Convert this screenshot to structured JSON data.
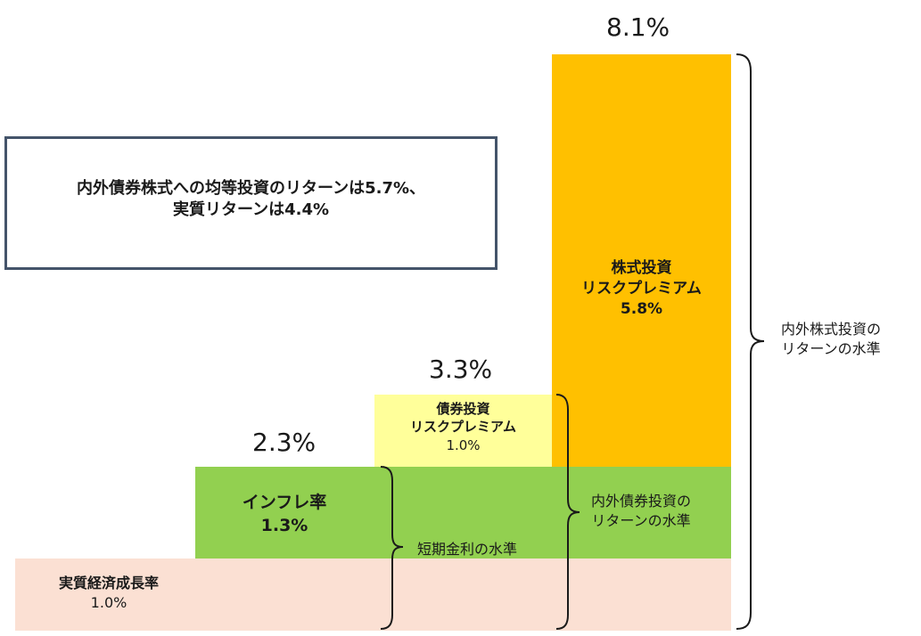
{
  "totals": {
    "equity": "8.1%",
    "bond": "3.3%",
    "inflation": "2.3%"
  },
  "blocks": {
    "equity_rp": {
      "line1": "株式投資",
      "line2": "リスクプレミアム",
      "value": "5.8%"
    },
    "bond_rp": {
      "line1": "債券投資",
      "line2": "リスクプレミアム",
      "value": "1.0%"
    },
    "inflation": {
      "line1": "インフレ率",
      "value": "1.3%"
    },
    "real_growth": {
      "line1": "実質経済成長率",
      "value": "1.0%"
    }
  },
  "brace_labels": {
    "short_rate": "短期金利の水準",
    "bond_return": {
      "line1": "内外債券投資の",
      "line2": "リターンの水準"
    },
    "equity_return": {
      "line1": "内外株式投資の",
      "line2": "リターンの水準"
    }
  },
  "note": {
    "line1": "内外債券株式への均等投資のリターンは5.7%、",
    "line2": "実質リターンは4.4%"
  },
  "colors": {
    "equity_rp": "#ffc000",
    "bond_rp": "#ffff9a",
    "inflation": "#92d050",
    "real_growth": "#fbe0d3",
    "note_border": "#44546a"
  }
}
